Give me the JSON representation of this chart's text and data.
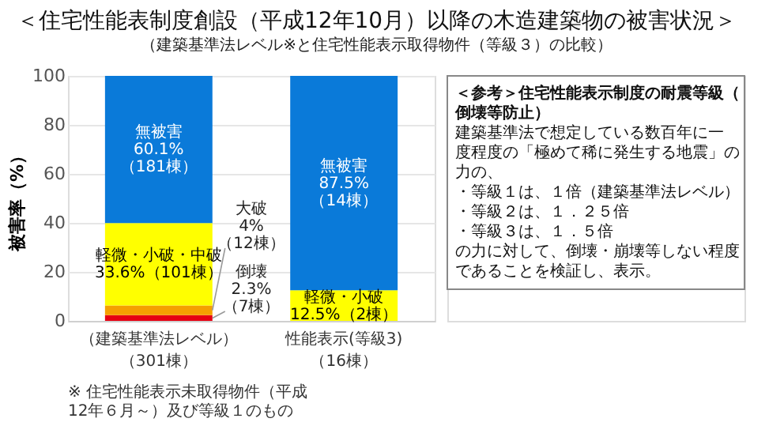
{
  "chart_data": {
    "type": "bar",
    "stacked": true,
    "title": "＜住宅性能表制度創設（平成12年10月）以降の木造建築物の被害状況＞",
    "subtitle": "（建築基準法レベル※と住宅性能表示取得物件（等級３）の比較）",
    "ylabel": "被害率（%）",
    "categories": [
      "（建築基準法レベル）（301棟）",
      "性能表示(等級3)（16棟）"
    ],
    "series": [
      {
        "color": "#e60012",
        "values": [
          2.3,
          0
        ],
        "value_labels": [
          "倒壊\n2.3%\n（7棟）",
          null
        ]
      },
      {
        "color": "#f5a000",
        "values": [
          4,
          0
        ],
        "value_labels": [
          "大破\n4%\n（12棟）",
          null
        ]
      },
      {
        "color": "#ffff00",
        "values": [
          33.6,
          12.5
        ],
        "value_labels": [
          "軽微・小破・中破\n33.6%（101棟）",
          "軽微・小破\n12.5%（2棟）"
        ]
      },
      {
        "color": "#0a7ad9",
        "values": [
          60.1,
          87.5
        ],
        "value_labels": [
          "無被害\n60.1%\n（181棟）",
          "無被害\n87.5%\n（14棟）"
        ]
      }
    ],
    "ylim": [
      0,
      100
    ],
    "yticks": [
      0,
      20,
      40,
      60,
      80,
      100
    ],
    "grid": "y",
    "annotations": [
      "※ 住宅性能表示未取得物件（平成12年６月～）及び等級１のもの",
      "＜参考＞住宅性能表示制度の耐震等級（倒壊等防止）",
      "　建築基準法で想定している数百年に一度程度の「極めて稀に発生する地震」の力の、",
      "・等級１は、１倍（建築基準法レベル）",
      "・等級２は、１．２５倍",
      "・等級３は、１．５倍",
      "の力に対して、倒壊・崩壊等しない程度であることを検証し、表示。"
    ]
  }
}
